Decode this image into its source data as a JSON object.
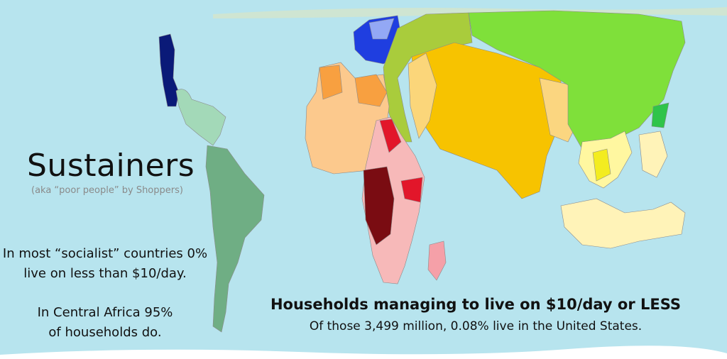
{
  "title": "Sustainers",
  "subtitle": "(aka “poor people” by Shoppers)",
  "notes": [
    {
      "lines": [
        "In most “socialist” countries 0%",
        "live on less than $10/day."
      ]
    },
    {
      "lines": [
        "In Central Africa 95%",
        "of households  do."
      ]
    }
  ],
  "heading": "Households managing to live on $10/day or LESS",
  "caption": "Of those 3,499 million, 0.08% live in the United States."
}
